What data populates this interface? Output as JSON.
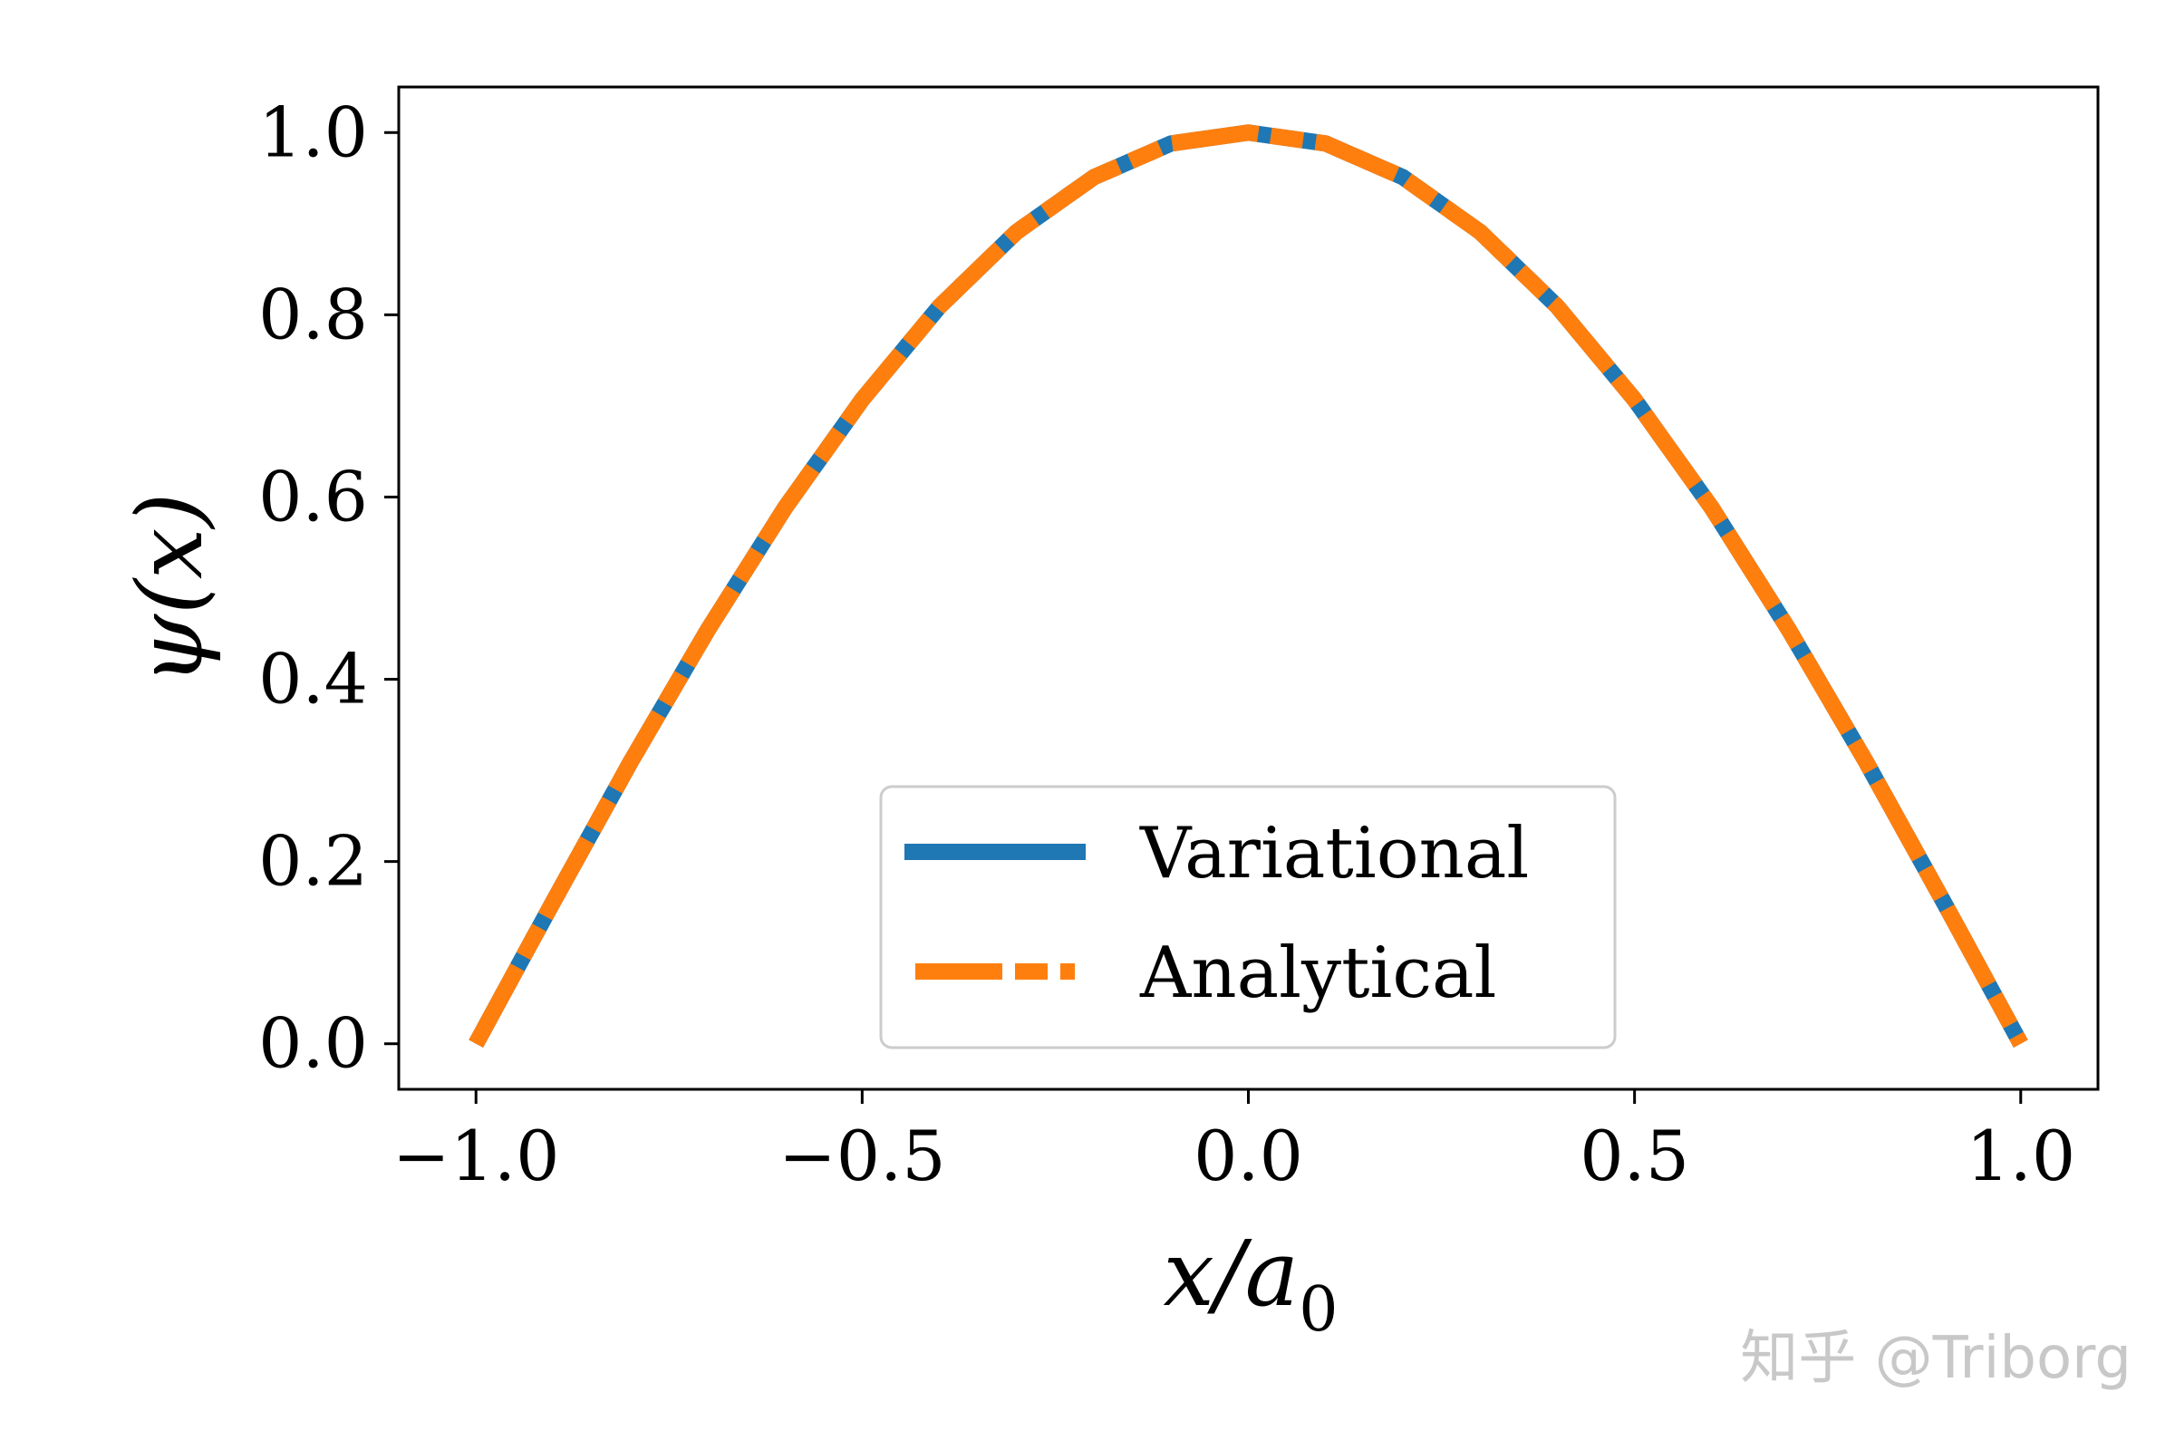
{
  "chart_data": {
    "type": "line",
    "xlabel": "x/a",
    "xlabel_subscript": "0",
    "ylabel": "ψ(x)",
    "xlim": [
      -1.1,
      1.1
    ],
    "ylim": [
      -0.05,
      1.05
    ],
    "xticks": [
      -1.0,
      -0.5,
      0.0,
      0.5,
      1.0
    ],
    "xtick_labels": [
      "−1.0",
      "−0.5",
      "0.0",
      "0.5",
      "1.0"
    ],
    "yticks": [
      0.0,
      0.2,
      0.4,
      0.6,
      0.8,
      1.0
    ],
    "ytick_labels": [
      "0.0",
      "0.2",
      "0.4",
      "0.6",
      "0.8",
      "1.0"
    ],
    "grid": false,
    "legend_position": "bottom-center",
    "series": [
      {
        "name": "Variational",
        "color": "#1f77b4",
        "style": "solid",
        "x": [
          -1.0,
          -0.9,
          -0.8,
          -0.7,
          -0.6,
          -0.5,
          -0.4,
          -0.3,
          -0.2,
          -0.1,
          0.0,
          0.1,
          0.2,
          0.3,
          0.4,
          0.5,
          0.6,
          0.7,
          0.8,
          0.9,
          1.0
        ],
        "y": [
          0.0,
          0.156,
          0.309,
          0.454,
          0.588,
          0.707,
          0.809,
          0.891,
          0.951,
          0.988,
          1.0,
          0.988,
          0.951,
          0.891,
          0.809,
          0.707,
          0.588,
          0.454,
          0.309,
          0.156,
          0.0
        ]
      },
      {
        "name": "Analytical",
        "color": "#ff7f0e",
        "style": "dashdot",
        "x": [
          -1.0,
          -0.9,
          -0.8,
          -0.7,
          -0.6,
          -0.5,
          -0.4,
          -0.3,
          -0.2,
          -0.1,
          0.0,
          0.1,
          0.2,
          0.3,
          0.4,
          0.5,
          0.6,
          0.7,
          0.8,
          0.9,
          1.0
        ],
        "y": [
          0.0,
          0.156,
          0.309,
          0.454,
          0.588,
          0.707,
          0.809,
          0.891,
          0.951,
          0.988,
          1.0,
          0.988,
          0.951,
          0.891,
          0.809,
          0.707,
          0.588,
          0.454,
          0.309,
          0.156,
          0.0
        ]
      }
    ]
  },
  "watermark": "知乎 @Triborg"
}
